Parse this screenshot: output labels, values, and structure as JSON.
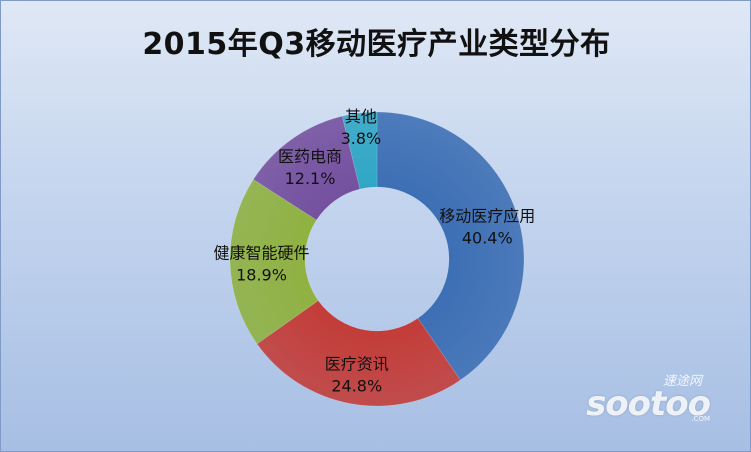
{
  "chart_data": {
    "type": "pie",
    "variant": "doughnut",
    "title": "2015年Q3移动医疗产业类型分布",
    "legend": "none",
    "slices": [
      {
        "label": "移动医疗应用",
        "value": 40.4,
        "value_label": "40.4%",
        "color": "#3c6eb4"
      },
      {
        "label": "医疗资讯",
        "value": 24.8,
        "value_label": "24.8%",
        "color": "#c33b37"
      },
      {
        "label": "健康智能硬件",
        "value": 18.9,
        "value_label": "18.9%",
        "color": "#8fb140"
      },
      {
        "label": "医药电商",
        "value": 12.1,
        "value_label": "12.1%",
        "color": "#744f9e"
      },
      {
        "label": "其他",
        "value": 3.8,
        "value_label": "3.8%",
        "color": "#2fa6c5"
      }
    ]
  },
  "watermark": {
    "cn": "速途网",
    "en": "sootoo",
    "com": ".COM"
  }
}
